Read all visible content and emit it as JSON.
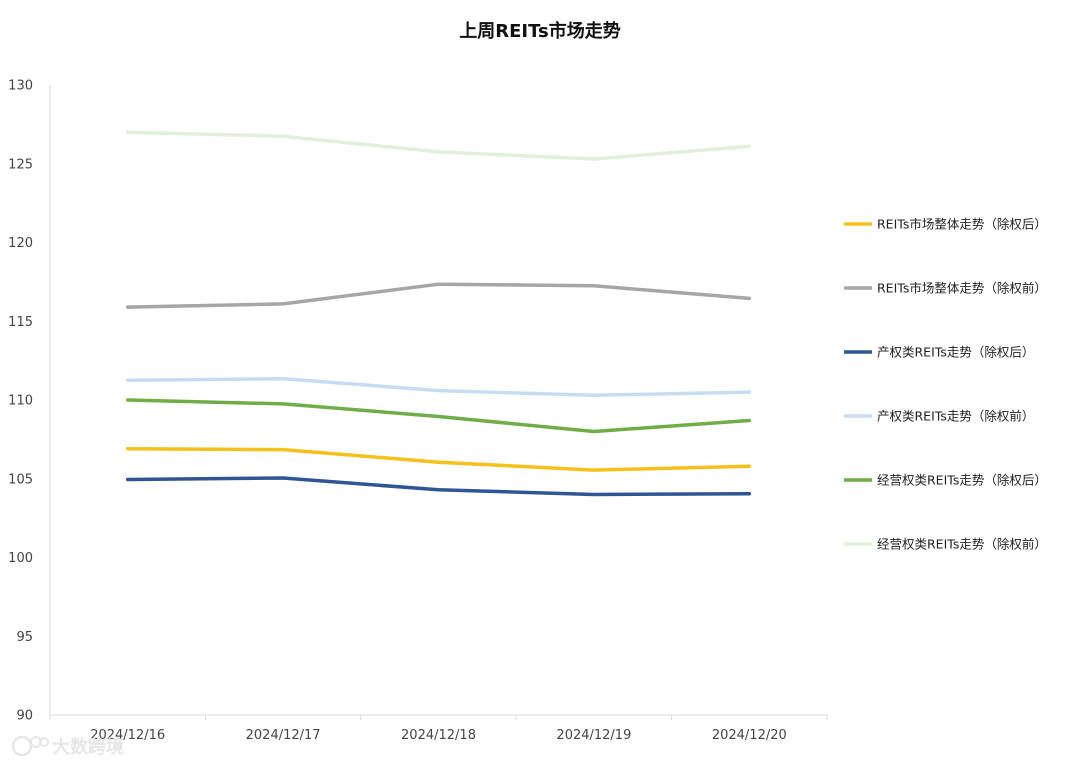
{
  "chart_data": {
    "type": "line",
    "title": "上周REITs市场走势",
    "xlabel": "",
    "ylabel": "",
    "categories": [
      "2024/12/16",
      "2024/12/17",
      "2024/12/18",
      "2024/12/19",
      "2024/12/20"
    ],
    "ylim": [
      90,
      130
    ],
    "yticks": [
      "90",
      "95",
      "100",
      "105",
      "110",
      "115",
      "120",
      "125",
      "130"
    ],
    "grid": false,
    "legend_position": "right",
    "series": [
      {
        "name": "REITs市场整体走势（除权后）",
        "color": "#F5C01A",
        "values": [
          106.9,
          106.85,
          106.05,
          105.55,
          105.8
        ]
      },
      {
        "name": "REITs市场整体走势（除权前）",
        "color": "#A6A6A6",
        "values": [
          115.9,
          116.1,
          117.35,
          117.25,
          116.45
        ]
      },
      {
        "name": "产权类REITs走势（除权后）",
        "color": "#2F5597",
        "values": [
          104.95,
          105.05,
          104.3,
          104.0,
          104.05
        ]
      },
      {
        "name": "产权类REITs走势（除权前）",
        "color": "#C5DCF2",
        "values": [
          111.25,
          111.35,
          110.6,
          110.3,
          110.5
        ]
      },
      {
        "name": "经营权类REITs走势（除权后）",
        "color": "#70AD47",
        "values": [
          110.0,
          109.75,
          108.95,
          108.0,
          108.7
        ]
      },
      {
        "name": "经营权类REITs走势（除权前）",
        "color": "#E2EFDA",
        "values": [
          127.0,
          126.75,
          125.75,
          125.3,
          126.1
        ]
      }
    ]
  },
  "watermark": {
    "text": "大数跨境",
    "icon": "logo-icon"
  }
}
